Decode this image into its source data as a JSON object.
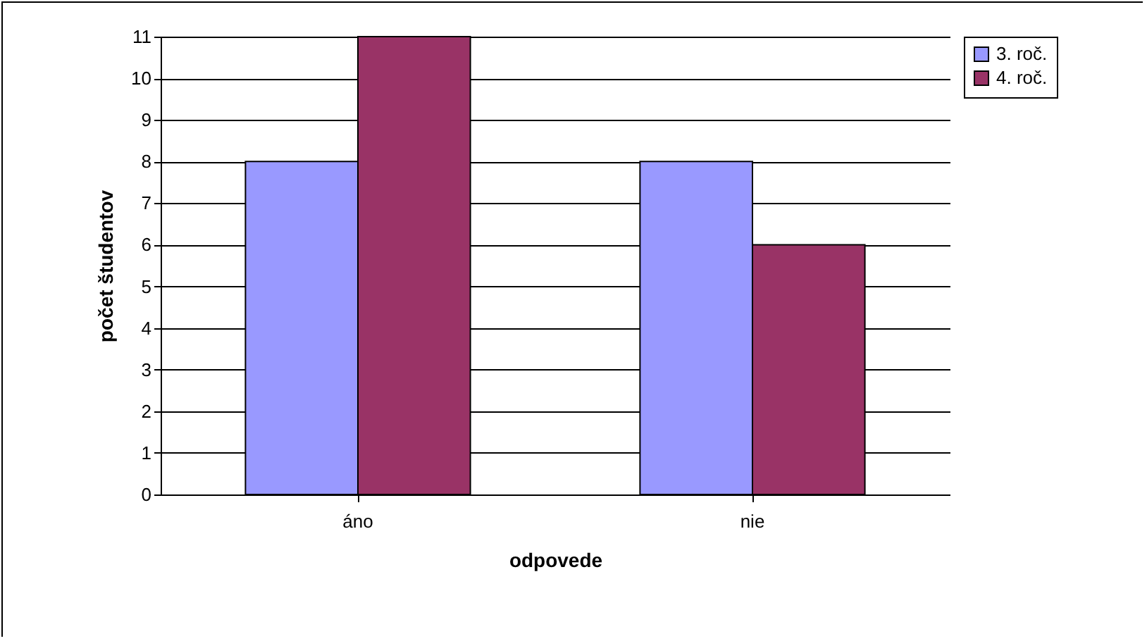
{
  "chart_data": {
    "type": "bar",
    "xlabel": "odpovede",
    "ylabel": "počet študentov",
    "categories": [
      "áno",
      "nie"
    ],
    "series": [
      {
        "name": "3. roč.",
        "color": "#9999ff",
        "values": [
          8,
          8
        ]
      },
      {
        "name": "4. roč.",
        "color": "#993366",
        "values": [
          11,
          6
        ]
      }
    ],
    "ylim": [
      0,
      11
    ],
    "yticks": [
      0,
      1,
      2,
      3,
      4,
      5,
      6,
      7,
      8,
      9,
      10,
      11
    ],
    "grid": "y",
    "legend": "right"
  }
}
